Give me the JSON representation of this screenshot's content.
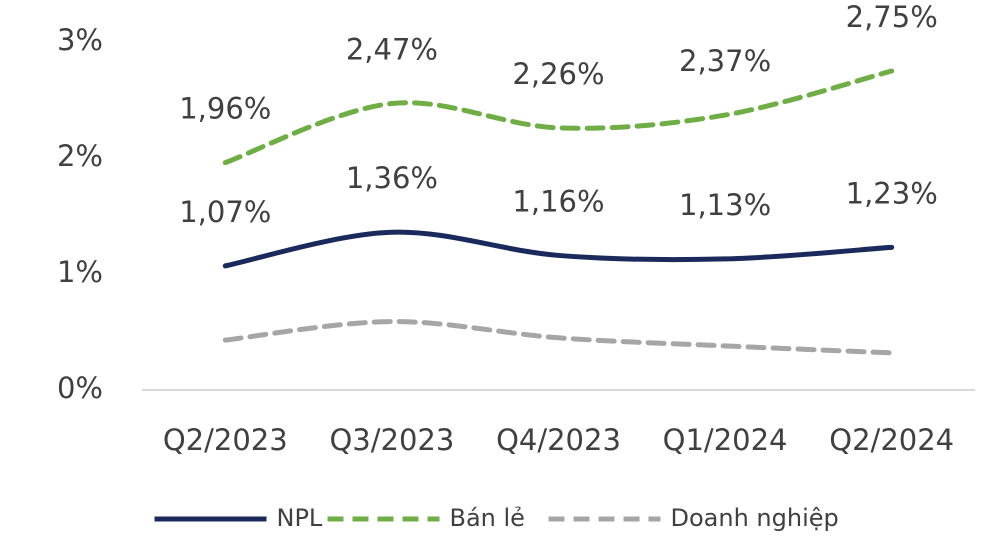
{
  "chart_data": {
    "type": "line",
    "categories": [
      "Q2/2023",
      "Q3/2023",
      "Q4/2023",
      "Q1/2024",
      "Q2/2024"
    ],
    "series": [
      {
        "name": "NPL",
        "color": "#1b2a5c",
        "line_style": "solid",
        "values": [
          1.07,
          1.36,
          1.16,
          1.13,
          1.23
        ],
        "value_labels": [
          "1,07%",
          "1,36%",
          "1,16%",
          "1,13%",
          "1,23%"
        ]
      },
      {
        "name": "Bán lẻ",
        "color": "#70ad47",
        "line_style": "dashed",
        "values": [
          1.96,
          2.47,
          2.26,
          2.37,
          2.75
        ],
        "value_labels": [
          "1,96%",
          "2,47%",
          "2,26%",
          "2,37%",
          "2,75%"
        ]
      },
      {
        "name": "Doanh nghiệp",
        "color": "#a6a6a6",
        "line_style": "dashed",
        "values": [
          0.43,
          0.59,
          0.45,
          0.38,
          0.32
        ]
      }
    ],
    "ylim": [
      0,
      3
    ],
    "yticks": [
      {
        "value": 0,
        "label": "0%"
      },
      {
        "value": 1,
        "label": "1%"
      },
      {
        "value": 2,
        "label": "2%"
      },
      {
        "value": 3,
        "label": "3%"
      }
    ],
    "grid": false,
    "smooth": true,
    "legend": "bottom"
  }
}
